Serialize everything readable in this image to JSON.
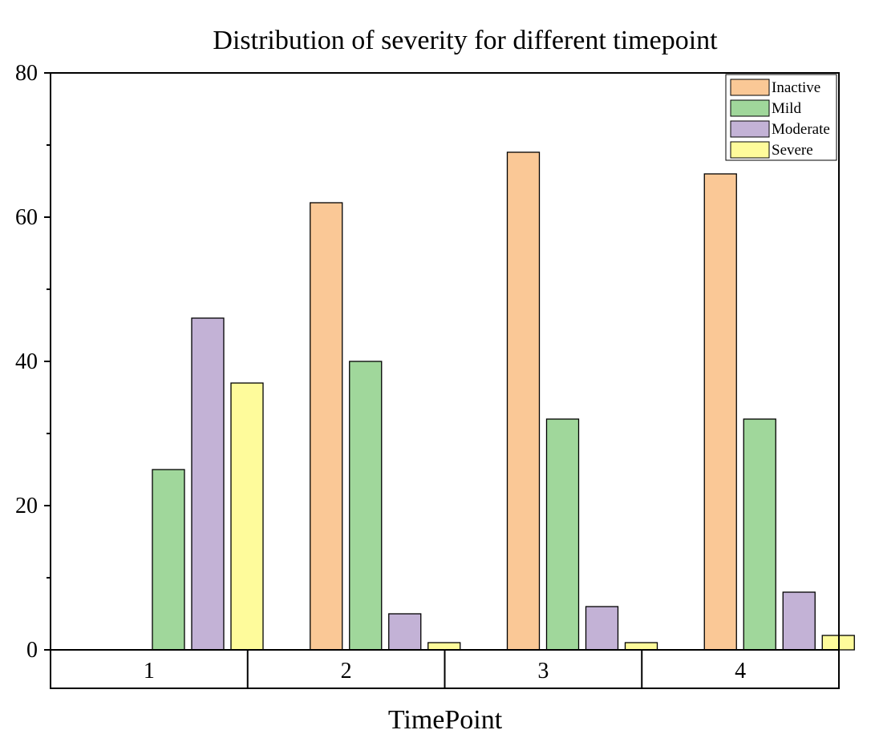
{
  "chart_data": {
    "type": "bar",
    "title": "Distribution of severity for different timepoint",
    "xlabel": "TimePoint",
    "ylabel": "",
    "categories": [
      "1",
      "2",
      "3",
      "4"
    ],
    "ylim": [
      0,
      80
    ],
    "yticks": [
      0,
      20,
      40,
      60,
      80
    ],
    "series": [
      {
        "name": "Inactive",
        "color": "#FAC896",
        "values": [
          0,
          62,
          69,
          66
        ]
      },
      {
        "name": "Mild",
        "color": "#A0D79B",
        "values": [
          25,
          40,
          32,
          32
        ]
      },
      {
        "name": "Moderate",
        "color": "#C3B2D6",
        "values": [
          46,
          5,
          6,
          8
        ]
      },
      {
        "name": "Severe",
        "color": "#FEFB9B",
        "values": [
          37,
          1,
          1,
          2
        ]
      }
    ],
    "grid": false,
    "legend_position": "top-right"
  }
}
